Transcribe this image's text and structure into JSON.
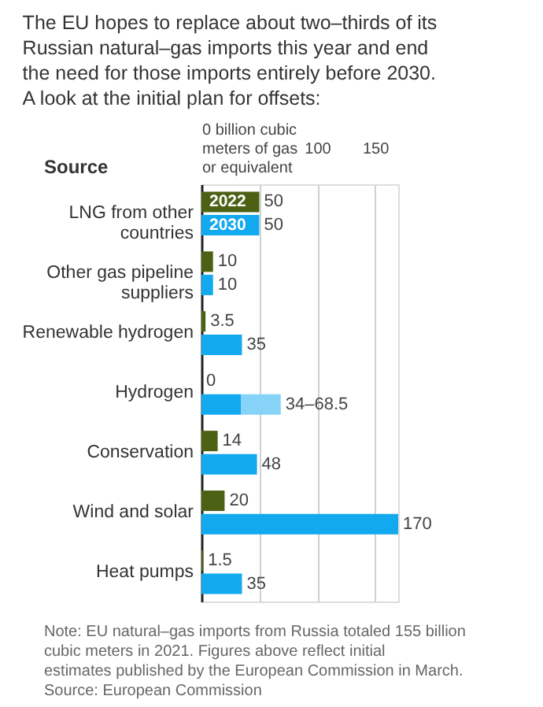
{
  "chart_data": {
    "type": "bar",
    "orientation": "horizontal",
    "title": "The EU hopes to replace about two–thirds of its Russian natural–gas imports this year and end the need for those imports entirely before 2030. A look at the initial plan for offsets:",
    "ylabel": "Source",
    "categories": [
      "LNG from other countries",
      "Other gas pipeline suppliers",
      "Renewable hydrogen",
      "Hydrogen",
      "Conservation",
      "Wind and solar",
      "Heat pumps"
    ],
    "series": [
      {
        "name": "2022",
        "color": "#4d6114",
        "values": [
          50,
          10,
          3.5,
          0,
          14,
          20,
          1.5
        ],
        "value_labels": [
          "50",
          "10",
          "3.5",
          "0",
          "14",
          "20",
          "1.5"
        ]
      },
      {
        "name": "2030",
        "color": "#12a9ef",
        "values": [
          50,
          10,
          35,
          34,
          48,
          170,
          35
        ],
        "value_labels": [
          "50",
          "10",
          "35",
          null,
          "48",
          "170",
          "35"
        ]
      },
      {
        "color": "#86d3f7",
        "values": [
          null,
          null,
          null,
          34.5,
          null,
          null,
          null
        ],
        "base": [
          null,
          null,
          null,
          34,
          null,
          null,
          null
        ],
        "value_labels": [
          null,
          null,
          null,
          "34–68.5",
          null,
          null,
          null
        ]
      }
    ],
    "xlim": [
      0,
      170
    ],
    "xticks": [
      {
        "value": 0,
        "label": "0 billion cubic meters of gas or equivalent"
      },
      {
        "value": 50,
        "label": null
      },
      100,
      150
    ],
    "grid": "x",
    "legend": false,
    "annotations": [
      "Note: EU natural–gas imports from Russia totaled 155 billion cubic meters in 2021. Figures above reflect initial estimates published by the European Commission in March.",
      "Source: European Commission"
    ]
  }
}
